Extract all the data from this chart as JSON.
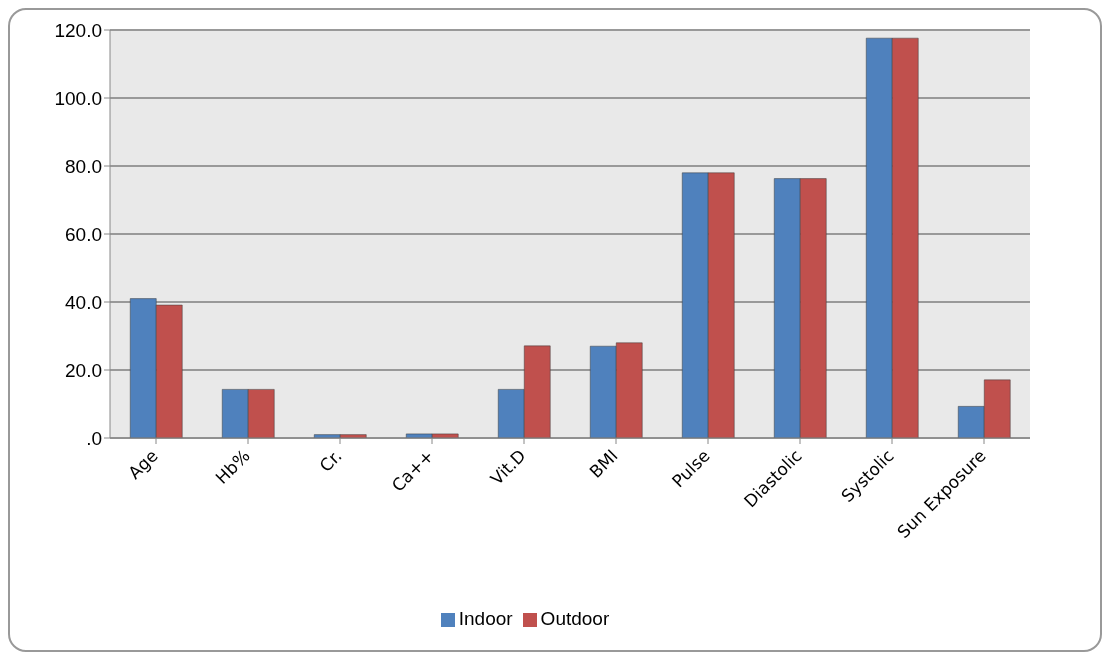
{
  "chart_data": {
    "type": "bar",
    "categories": [
      "Age",
      "Hb%",
      "Cr.",
      "Ca++",
      "Vit.D",
      "BMI",
      "Pulse",
      "Diastolic",
      "Systolic",
      "Sun Exposure"
    ],
    "series": [
      {
        "name": "Indoor",
        "color": "#4f81bd",
        "values": [
          41.0,
          14.3,
          1.0,
          1.2,
          14.3,
          27.0,
          78.0,
          76.3,
          117.6,
          9.3
        ]
      },
      {
        "name": "Outdoor",
        "color": "#c0504d",
        "values": [
          39.1,
          14.3,
          1.0,
          1.2,
          27.1,
          28.0,
          78.0,
          76.3,
          117.6,
          17.1
        ]
      }
    ],
    "ylim": [
      0,
      120
    ],
    "yticks": [
      {
        "value": 0,
        "label": ".0"
      },
      {
        "value": 20,
        "label": "20.0"
      },
      {
        "value": 40,
        "label": "40.0"
      },
      {
        "value": 60,
        "label": "60.0"
      },
      {
        "value": 80,
        "label": "80.0"
      },
      {
        "value": 100,
        "label": "100.0"
      },
      {
        "value": 120,
        "label": "120.0"
      }
    ],
    "grid": "y",
    "legend": "bottom"
  }
}
